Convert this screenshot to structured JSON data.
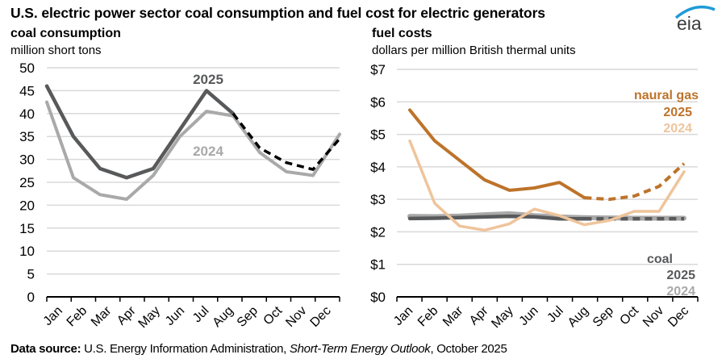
{
  "title": "U.S. electric power sector coal consumption and fuel cost for electric generators",
  "logo": "eia",
  "source": {
    "label": "Data source:",
    "text_before": " U.S. Energy Information Administration, ",
    "italic": "Short-Term Energy Outlook",
    "text_after": ", October 2025"
  },
  "colors": {
    "coal_2025": "#58595b",
    "coal_2024": "#a9a9a9",
    "forecast_left": "#000000",
    "gas_2025": "#bd732a",
    "gas_2024": "#efc49b",
    "coal_cost_2025": "#58595b",
    "coal_cost_2024": "#a9a9a9",
    "grid": "#d9d9d9",
    "logo_arc": "#1e9bd7",
    "logo_text": "#3c3c3c"
  },
  "chart_data": [
    {
      "type": "line",
      "title": "coal consumption",
      "ylabel": "million short tons",
      "xlabel": "",
      "categories": [
        "Jan",
        "Feb",
        "Mar",
        "Apr",
        "May",
        "Jun",
        "Jul",
        "Aug",
        "Sep",
        "Oct",
        "Nov",
        "Dec"
      ],
      "ylim": [
        0,
        50
      ],
      "yticks": [
        0,
        5,
        10,
        15,
        20,
        25,
        30,
        35,
        40,
        45,
        50
      ],
      "ytick_labels": [
        "0",
        "5",
        "10",
        "15",
        "20",
        "25",
        "30",
        "35",
        "40",
        "45",
        "50"
      ],
      "grid": true,
      "forecast_start_index": 7,
      "series": [
        {
          "name": "2024",
          "label": "2024",
          "values": [
            42.5,
            26,
            22.3,
            21.3,
            26.5,
            35,
            40.5,
            39.5,
            31.5,
            27.3,
            26.5,
            35.5
          ]
        },
        {
          "name": "2025",
          "label": "2025",
          "values": [
            46,
            35,
            28,
            26,
            28,
            36.5,
            45,
            40,
            32.5,
            29.3,
            27.8,
            34.5
          ],
          "forecast_after": 7
        }
      ],
      "annotations": [
        "2025",
        "2024"
      ]
    },
    {
      "type": "line",
      "title": "fuel costs",
      "ylabel": "dollars per million British thermal units",
      "xlabel": "",
      "categories": [
        "Jan",
        "Feb",
        "Mar",
        "Apr",
        "May",
        "Jun",
        "Jul",
        "Aug",
        "Sep",
        "Oct",
        "Nov",
        "Dec"
      ],
      "ylim": [
        0,
        7
      ],
      "yticks": [
        0,
        1,
        2,
        3,
        4,
        5,
        6,
        7
      ],
      "ytick_labels": [
        "$0",
        "$1",
        "$2",
        "$3",
        "$4",
        "$5",
        "$6",
        "$7"
      ],
      "grid": true,
      "series": [
        {
          "name": "coal 2024",
          "values": [
            2.48,
            2.47,
            2.49,
            2.53,
            2.56,
            2.5,
            2.46,
            2.44,
            2.43,
            2.42,
            2.42,
            2.42
          ]
        },
        {
          "name": "coal 2025",
          "values": [
            2.41,
            2.42,
            2.44,
            2.46,
            2.48,
            2.46,
            2.4,
            2.4,
            2.4,
            2.4,
            2.4,
            2.4
          ],
          "forecast_after": 7
        },
        {
          "name": "natural gas 2024",
          "values": [
            4.8,
            2.88,
            2.18,
            2.05,
            2.25,
            2.7,
            2.5,
            2.22,
            2.35,
            2.63,
            2.63,
            3.85
          ]
        },
        {
          "name": "natural gas 2025",
          "values": [
            5.75,
            4.8,
            4.2,
            3.6,
            3.28,
            3.35,
            3.52,
            3.05,
            3.0,
            3.1,
            3.4,
            4.1
          ],
          "forecast_after": 7
        }
      ],
      "legend": {
        "gas": {
          "title": "naural gas",
          "y2025": "2025",
          "y2024": "2024"
        },
        "coal": {
          "title": "coal",
          "y2025": "2025",
          "y2024": "2024"
        }
      }
    }
  ]
}
